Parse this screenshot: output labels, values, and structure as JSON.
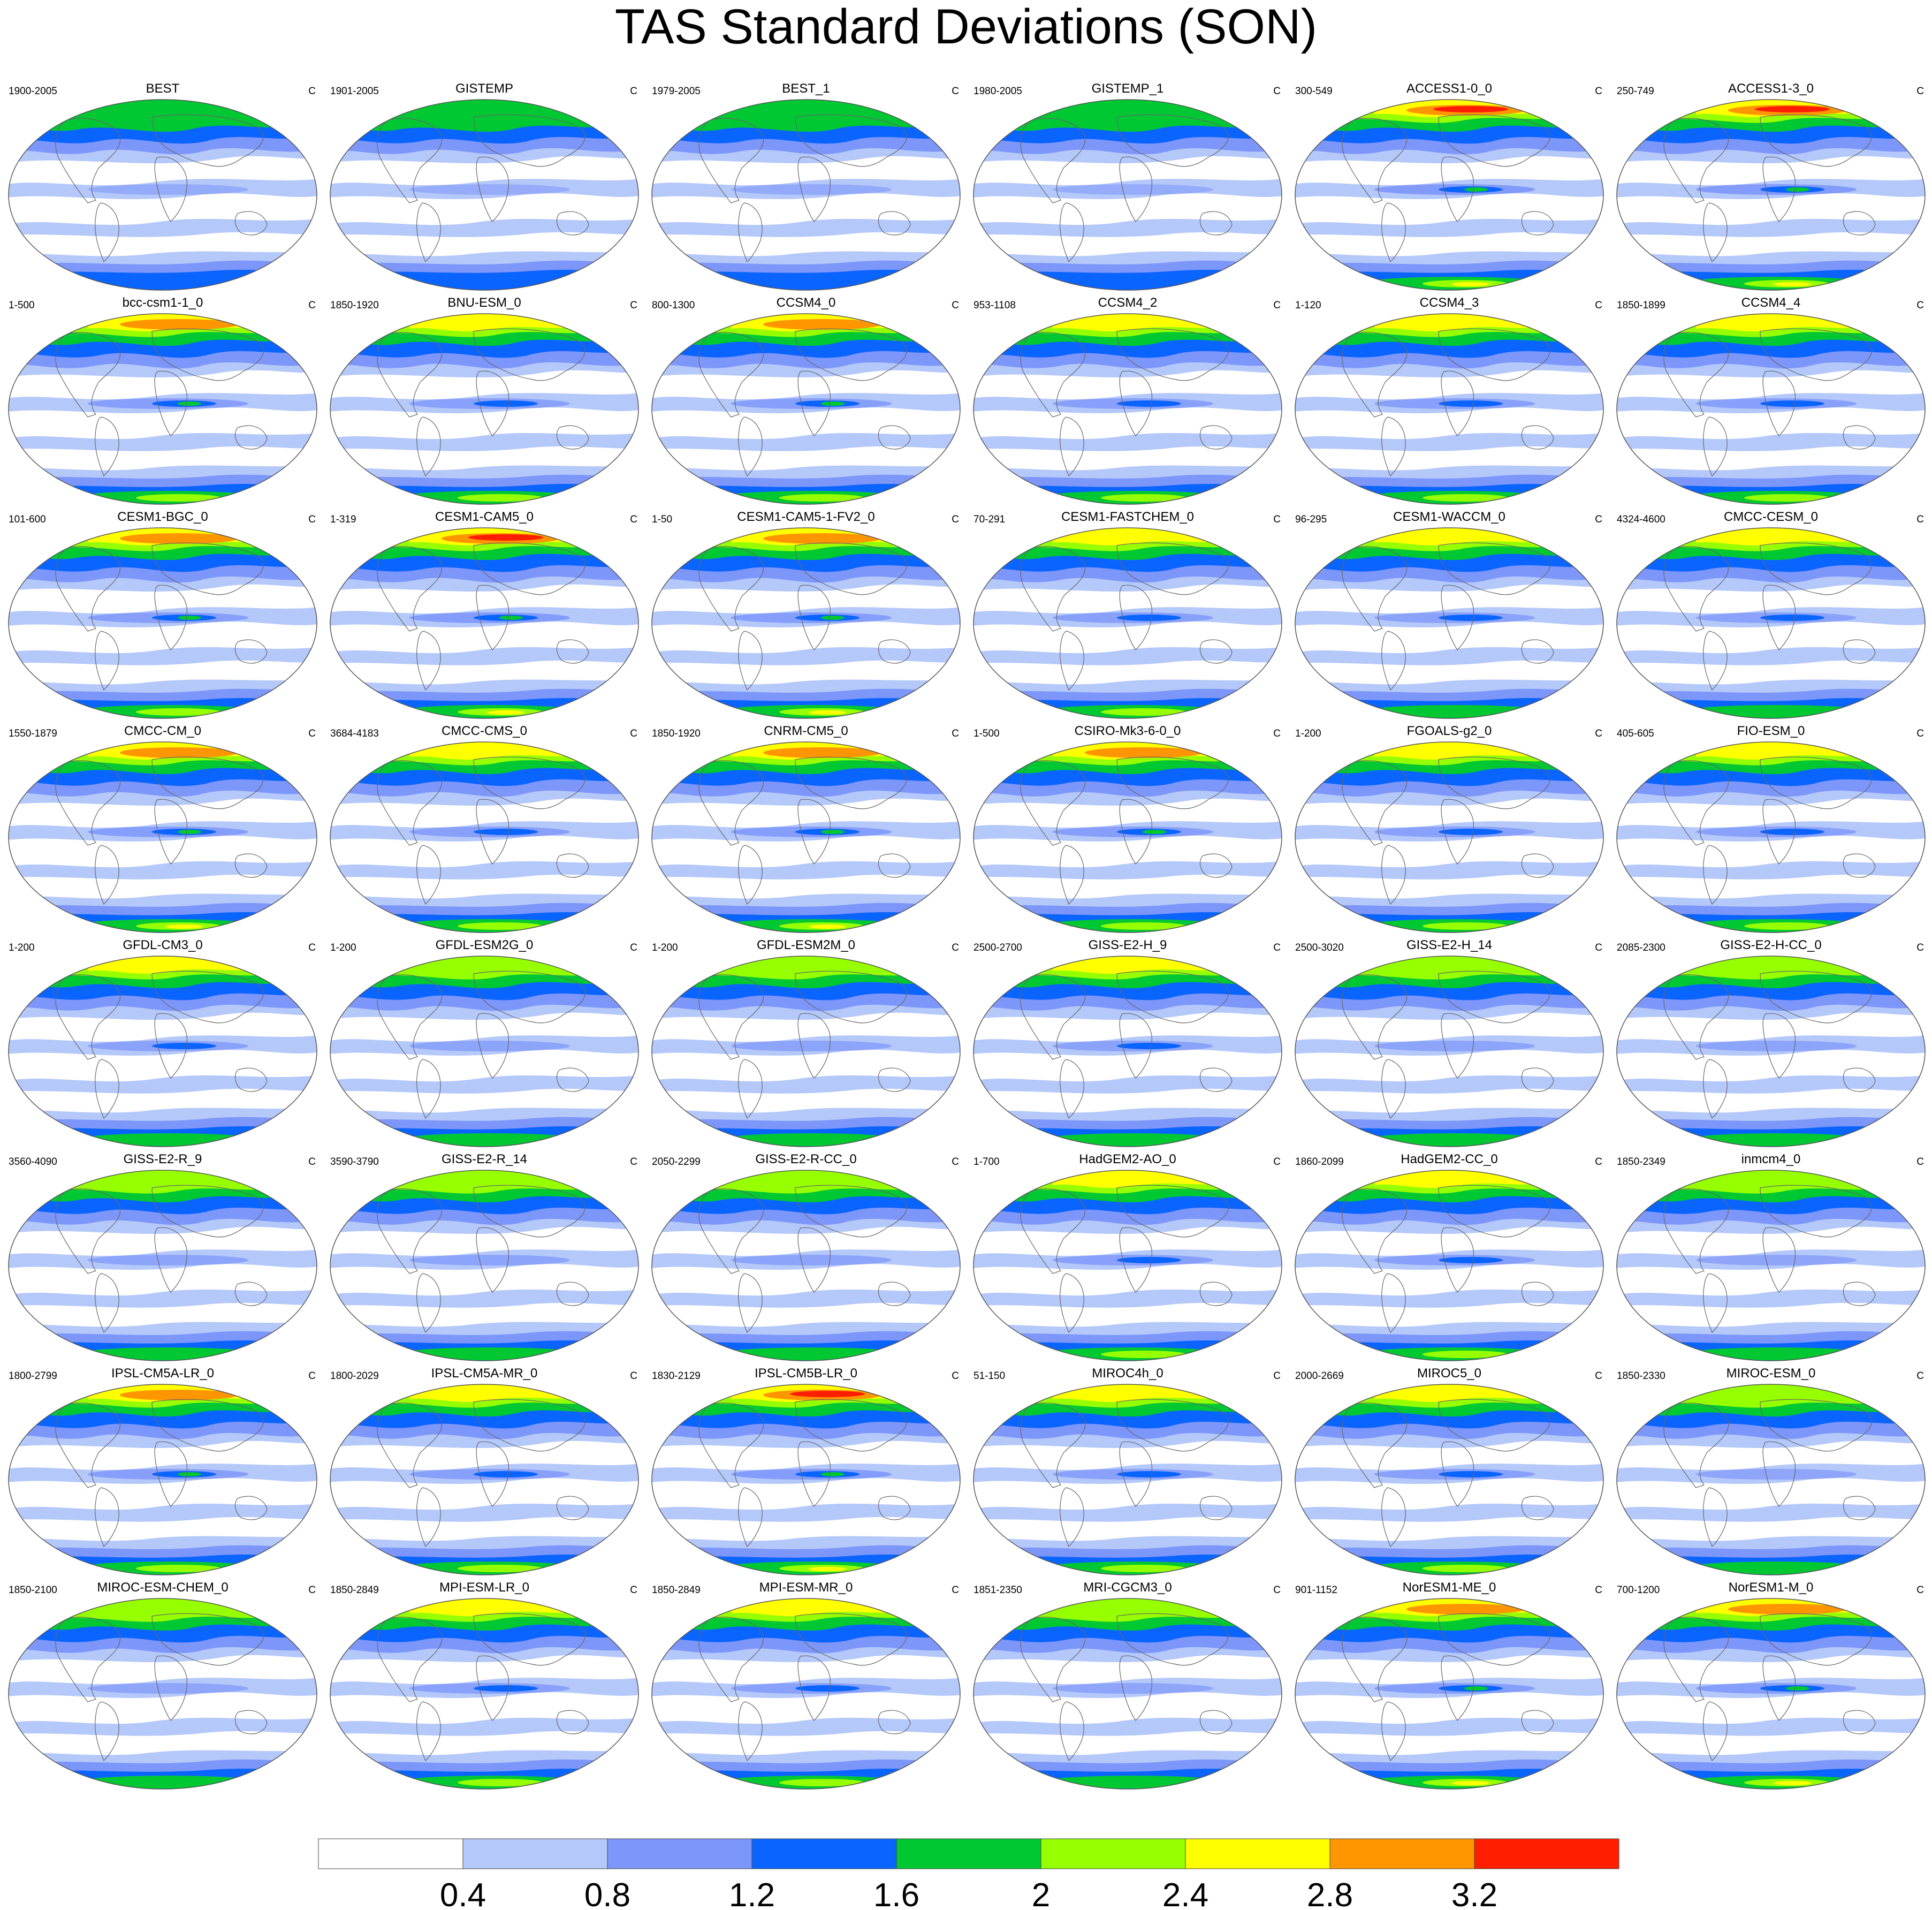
{
  "title": "TAS Standard Deviations (SON)",
  "unit_label": "C",
  "colorbar": {
    "levels": [
      "0.4",
      "0.8",
      "1.2",
      "1.6",
      "2",
      "2.4",
      "2.8",
      "3.2"
    ],
    "colors": [
      "#ffffff",
      "#b4c8fa",
      "#7d96fa",
      "#0a64ff",
      "#00c832",
      "#96ff00",
      "#ffff00",
      "#ff9600",
      "#ff1e00"
    ]
  },
  "panels": [
    {
      "name": "BEST",
      "years": "1900-2005",
      "intensity": 0.15
    },
    {
      "name": "GISTEMP",
      "years": "1901-2005",
      "intensity": 0.1
    },
    {
      "name": "BEST_1",
      "years": "1979-2005",
      "intensity": 0.2
    },
    {
      "name": "GISTEMP_1",
      "years": "1980-2005",
      "intensity": 0.12
    },
    {
      "name": "ACCESS1-0_0",
      "years": "300-549",
      "intensity": 0.85
    },
    {
      "name": "ACCESS1-3_0",
      "years": "250-749",
      "intensity": 0.8
    },
    {
      "name": "bcc-csm1-1_0",
      "years": "1-500",
      "intensity": 0.65
    },
    {
      "name": "BNU-ESM_0",
      "years": "1850-1920",
      "intensity": 0.55
    },
    {
      "name": "CCSM4_0",
      "years": "800-1300",
      "intensity": 0.65
    },
    {
      "name": "CCSM4_2",
      "years": "953-1108",
      "intensity": 0.6
    },
    {
      "name": "CCSM4_3",
      "years": "1-120",
      "intensity": 0.6
    },
    {
      "name": "CCSM4_4",
      "years": "1850-1899",
      "intensity": 0.6
    },
    {
      "name": "CESM1-BGC_0",
      "years": "101-600",
      "intensity": 0.65
    },
    {
      "name": "CESM1-CAM5_0",
      "years": "1-319",
      "intensity": 0.75
    },
    {
      "name": "CESM1-CAM5-1-FV2_0",
      "years": "1-50",
      "intensity": 0.7
    },
    {
      "name": "CESM1-FASTCHEM_0",
      "years": "70-291",
      "intensity": 0.6
    },
    {
      "name": "CESM1-WACCM_0",
      "years": "96-295",
      "intensity": 0.5
    },
    {
      "name": "CMCC-CESM_0",
      "years": "4324-4600",
      "intensity": 0.5
    },
    {
      "name": "CMCC-CM_0",
      "years": "1550-1879",
      "intensity": 0.7
    },
    {
      "name": "CMCC-CMS_0",
      "years": "3684-4183",
      "intensity": 0.6
    },
    {
      "name": "CNRM-CM5_0",
      "years": "1850-1920",
      "intensity": 0.7
    },
    {
      "name": "CSIRO-Mk3-6-0_0",
      "years": "1-500",
      "intensity": 0.65
    },
    {
      "name": "FGOALS-g2_0",
      "years": "1-200",
      "intensity": 0.55
    },
    {
      "name": "FIO-ESM_0",
      "years": "405-605",
      "intensity": 0.55
    },
    {
      "name": "GFDL-CM3_0",
      "years": "1-200",
      "intensity": 0.5
    },
    {
      "name": "GFDL-ESM2G_0",
      "years": "1-200",
      "intensity": 0.45
    },
    {
      "name": "GFDL-ESM2M_0",
      "years": "1-200",
      "intensity": 0.45
    },
    {
      "name": "GISS-E2-H_9",
      "years": "2500-2700",
      "intensity": 0.5
    },
    {
      "name": "GISS-E2-H_14",
      "years": "2500-3020",
      "intensity": 0.45
    },
    {
      "name": "GISS-E2-H-CC_0",
      "years": "2085-2300",
      "intensity": 0.45
    },
    {
      "name": "GISS-E2-R_9",
      "years": "3560-4090",
      "intensity": 0.45
    },
    {
      "name": "GISS-E2-R_14",
      "years": "3590-3790",
      "intensity": 0.45
    },
    {
      "name": "GISS-E2-R-CC_0",
      "years": "2050-2299",
      "intensity": 0.45
    },
    {
      "name": "HadGEM2-AO_0",
      "years": "1-700",
      "intensity": 0.6
    },
    {
      "name": "HadGEM2-CC_0",
      "years": "1860-2099",
      "intensity": 0.6
    },
    {
      "name": "inmcm4_0",
      "years": "1850-2349",
      "intensity": 0.4
    },
    {
      "name": "IPSL-CM5A-LR_0",
      "years": "1800-2799",
      "intensity": 0.65
    },
    {
      "name": "IPSL-CM5A-MR_0",
      "years": "1800-2029",
      "intensity": 0.6
    },
    {
      "name": "IPSL-CM5B-LR_0",
      "years": "1830-2129",
      "intensity": 0.75
    },
    {
      "name": "MIROC4h_0",
      "years": "51-150",
      "intensity": 0.55
    },
    {
      "name": "MIROC5_0",
      "years": "2000-2669",
      "intensity": 0.6
    },
    {
      "name": "MIROC-ESM_0",
      "years": "1850-2330",
      "intensity": 0.4
    },
    {
      "name": "MIROC-ESM-CHEM_0",
      "years": "1850-2100",
      "intensity": 0.4
    },
    {
      "name": "MPI-ESM-LR_0",
      "years": "1850-2849",
      "intensity": 0.55
    },
    {
      "name": "MPI-ESM-MR_0",
      "years": "1850-2849",
      "intensity": 0.55
    },
    {
      "name": "MRI-CGCM3_0",
      "years": "1851-2350",
      "intensity": 0.4
    },
    {
      "name": "NorESM1-ME_0",
      "years": "901-1152",
      "intensity": 0.7
    },
    {
      "name": "NorESM1-M_0",
      "years": "700-1200",
      "intensity": 0.7
    }
  ]
}
